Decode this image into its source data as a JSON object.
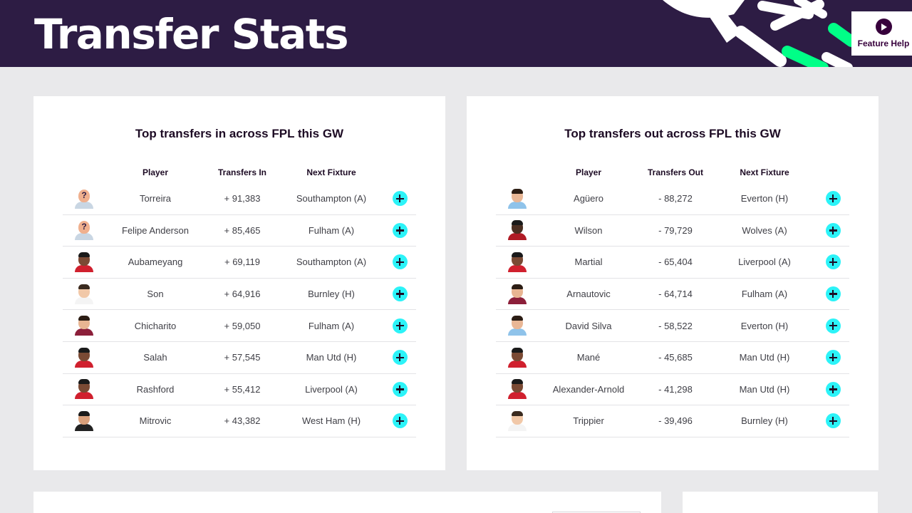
{
  "header": {
    "title": "Transfer Stats",
    "help_label": "Feature Help",
    "colors": {
      "background": "#2d1c44",
      "accent_green": "#00ff87"
    }
  },
  "transfers_in": {
    "title": "Top transfers in across FPL this GW",
    "columns": {
      "player": "Player",
      "count": "Transfers In",
      "fixture": "Next Fixture"
    },
    "rows": [
      {
        "player": "Torreira",
        "count": "+ 91,383",
        "fixture": "Southampton (A)",
        "avatar": "unknown"
      },
      {
        "player": "Felipe Anderson",
        "count": "+ 85,465",
        "fixture": "Fulham (A)",
        "avatar": "unknown"
      },
      {
        "player": "Aubameyang",
        "count": "+ 69,119",
        "fixture": "Southampton (A)",
        "avatar": "red"
      },
      {
        "player": "Son",
        "count": "+ 64,916",
        "fixture": "Burnley (H)",
        "avatar": "white"
      },
      {
        "player": "Chicharito",
        "count": "+ 59,050",
        "fixture": "Fulham (A)",
        "avatar": "claret"
      },
      {
        "player": "Salah",
        "count": "+ 57,545",
        "fixture": "Man Utd (H)",
        "avatar": "red"
      },
      {
        "player": "Rashford",
        "count": "+ 55,412",
        "fixture": "Liverpool (A)",
        "avatar": "red"
      },
      {
        "player": "Mitrovic",
        "count": "+ 43,382",
        "fixture": "West Ham (H)",
        "avatar": "white-black"
      }
    ]
  },
  "transfers_out": {
    "title": "Top transfers out across FPL this GW",
    "columns": {
      "player": "Player",
      "count": "Transfers Out",
      "fixture": "Next Fixture"
    },
    "rows": [
      {
        "player": "Agüero",
        "count": "- 88,272",
        "fixture": "Everton (H)",
        "avatar": "skyblue"
      },
      {
        "player": "Wilson",
        "count": "- 79,729",
        "fixture": "Wolves (A)",
        "avatar": "red-black"
      },
      {
        "player": "Martial",
        "count": "- 65,404",
        "fixture": "Liverpool (A)",
        "avatar": "red"
      },
      {
        "player": "Arnautovic",
        "count": "- 64,714",
        "fixture": "Fulham (A)",
        "avatar": "claret"
      },
      {
        "player": "David Silva",
        "count": "- 58,522",
        "fixture": "Everton (H)",
        "avatar": "skyblue"
      },
      {
        "player": "Mané",
        "count": "- 45,685",
        "fixture": "Man Utd (H)",
        "avatar": "red"
      },
      {
        "player": "Alexander-Arnold",
        "count": "- 41,298",
        "fixture": "Man Utd (H)",
        "avatar": "red"
      },
      {
        "player": "Trippier",
        "count": "- 39,496",
        "fixture": "Burnley (H)",
        "avatar": "white"
      }
    ]
  },
  "avatar_styles": {
    "unknown": {
      "face": "#f0b08e",
      "hair": "#f0b08e",
      "shirt": "#c9d6e3"
    },
    "red": {
      "face": "#7a4a34",
      "hair": "#1a1a1a",
      "shirt": "#d0202e"
    },
    "white": {
      "face": "#f1c8a8",
      "hair": "#3a2a1f",
      "shirt": "#f4f4f4"
    },
    "claret": {
      "face": "#e8b592",
      "hair": "#2c1d14",
      "shirt": "#8c1f3a"
    },
    "white-black": {
      "face": "#d9a07b",
      "hair": "#1a1a1a",
      "shirt": "#222222"
    },
    "skyblue": {
      "face": "#e9b796",
      "hair": "#2c1d14",
      "shirt": "#8fc3ea"
    },
    "red-black": {
      "face": "#4b2f22",
      "hair": "#1a1a1a",
      "shirt": "#b01b25"
    }
  }
}
